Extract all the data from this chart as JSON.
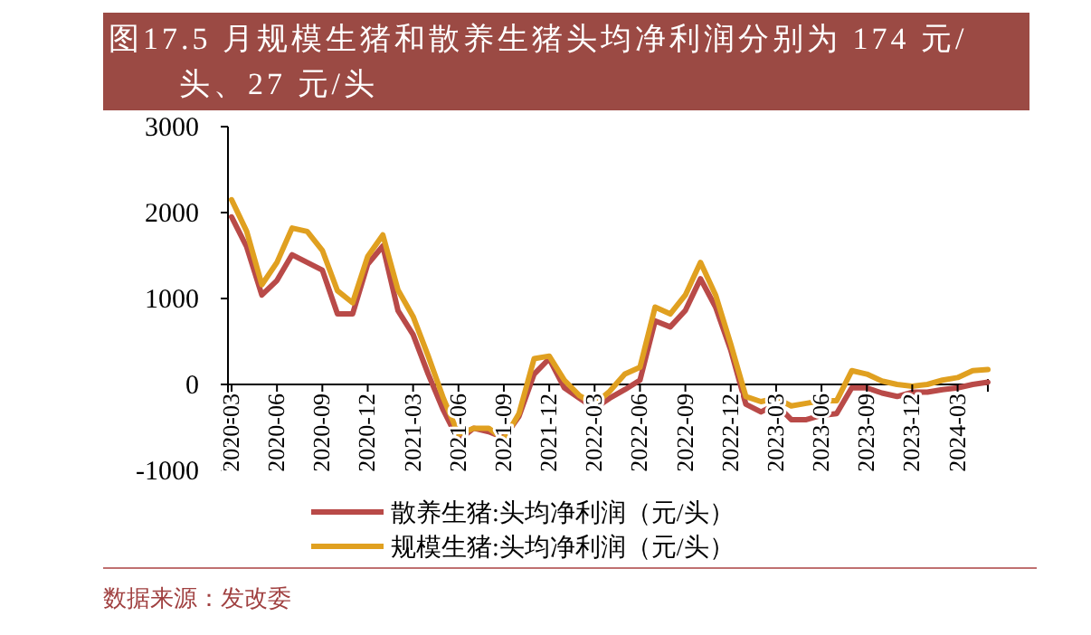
{
  "chart_data": {
    "type": "line",
    "title": "图17.5 月规模生猪和散养生猪头均净利润分别为 174 元/头、27 元/头",
    "x": [
      "2020-03",
      "2020-04",
      "2020-05",
      "2020-06",
      "2020-07",
      "2020-08",
      "2020-09",
      "2020-10",
      "2020-11",
      "2020-12",
      "2021-01",
      "2021-02",
      "2021-03",
      "2021-04",
      "2021-05",
      "2021-06",
      "2021-07",
      "2021-08",
      "2021-09",
      "2021-10",
      "2021-11",
      "2021-12",
      "2022-01",
      "2022-02",
      "2022-03",
      "2022-04",
      "2022-05",
      "2022-06",
      "2022-07",
      "2022-08",
      "2022-09",
      "2022-10",
      "2022-11",
      "2022-12",
      "2023-01",
      "2023-02",
      "2023-03",
      "2023-04",
      "2023-05",
      "2023-06",
      "2023-07",
      "2023-08",
      "2023-09",
      "2023-10",
      "2023-11",
      "2023-12",
      "2024-01",
      "2024-02",
      "2024-03",
      "2024-04",
      "2024-05"
    ],
    "series": [
      {
        "name": "散养生猪:头均净利润（元/头）",
        "color": "#b94a48",
        "values": [
          1950,
          1600,
          1040,
          1210,
          1510,
          1420,
          1330,
          820,
          820,
          1400,
          1610,
          860,
          580,
          120,
          -300,
          -650,
          -510,
          -550,
          -620,
          -370,
          120,
          300,
          -40,
          -160,
          -280,
          -160,
          -60,
          50,
          740,
          670,
          860,
          1230,
          900,
          400,
          -230,
          -320,
          -230,
          -410,
          -410,
          -360,
          -340,
          -40,
          -40,
          -100,
          -140,
          -90,
          -90,
          -60,
          -40,
          0,
          27
        ]
      },
      {
        "name": "规模生猪:头均净利润（元/头）",
        "color": "#e0a020",
        "values": [
          2150,
          1780,
          1160,
          1420,
          1820,
          1780,
          1560,
          1090,
          950,
          1490,
          1740,
          1100,
          790,
          330,
          -160,
          -580,
          -510,
          -510,
          -640,
          -340,
          300,
          330,
          50,
          -130,
          -230,
          -80,
          120,
          200,
          900,
          820,
          1040,
          1420,
          1040,
          470,
          -140,
          -200,
          -160,
          -250,
          -220,
          -190,
          -190,
          160,
          120,
          40,
          0,
          -20,
          0,
          50,
          80,
          160,
          174
        ]
      }
    ],
    "xlim": [
      "2020-03",
      "2024-05"
    ],
    "xticks": [
      "2020-03",
      "2020-06",
      "2020-09",
      "2020-12",
      "2021-03",
      "2021-06",
      "2021-09",
      "2021-12",
      "2022-03",
      "2022-06",
      "2022-09",
      "2022-12",
      "2023-03",
      "2023-06",
      "2023-09",
      "2023-12",
      "2024-03"
    ],
    "ylim": [
      -1000,
      3000
    ],
    "yticks": [
      -1000,
      0,
      1000,
      2000,
      3000
    ],
    "legend": "bottom",
    "line_style": "solid",
    "annotations": [
      "数据来源：发改委"
    ]
  }
}
